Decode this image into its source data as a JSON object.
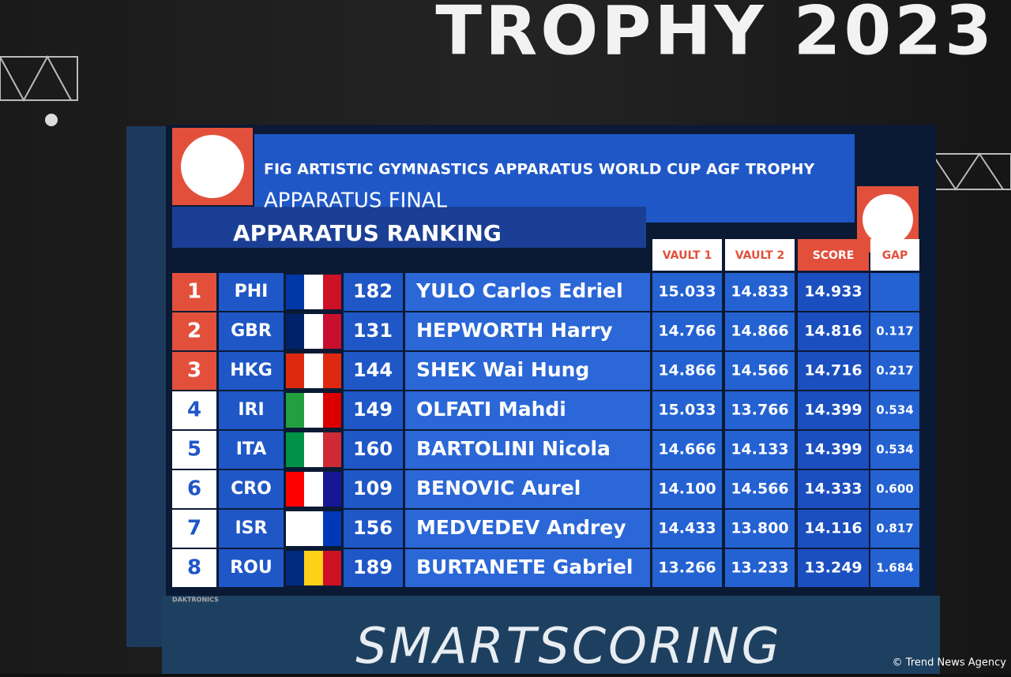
{
  "banner": {
    "text": "TROPHY 2023"
  },
  "board": {
    "title": "FIG ARTISTIC GYMNASTICS APPARATUS WORLD CUP AGF TROPHY",
    "subtitle": "APPARATUS FINAL",
    "heading": "APPARATUS RANKING",
    "columns": [
      "VAULT 1",
      "VAULT 2",
      "SCORE",
      "GAP"
    ],
    "rows": [
      [
        "1",
        "PHI",
        "182",
        "YULO Carlos Edriel",
        "15.033",
        "14.833",
        "14.933",
        null
      ],
      [
        "2",
        "GBR",
        "131",
        "HEPWORTH Harry",
        "14.766",
        "14.866",
        "14.816",
        "0.117"
      ],
      [
        "3",
        "HKG",
        "144",
        "SHEK Wai Hung",
        "14.866",
        "14.566",
        "14.716",
        "0.217"
      ],
      [
        "4",
        "IRI",
        "149",
        "OLFATI Mahdi",
        "15.033",
        "13.766",
        "14.399",
        "0.534"
      ],
      [
        "5",
        "ITA",
        "160",
        "BARTOLINI Nicola",
        "14.666",
        "14.133",
        "14.399",
        "0.534"
      ],
      [
        "6",
        "CRO",
        "109",
        "BENOVIC Aurel",
        "14.100",
        "14.566",
        "14.333",
        "0.600"
      ],
      [
        "7",
        "ISR",
        "156",
        "MEDVEDEV Andrey",
        "14.433",
        "13.800",
        "14.116",
        "0.817"
      ],
      [
        "8",
        "ROU",
        "189",
        "BURTANETE Gabriel",
        "13.266",
        "13.233",
        "13.249",
        "1.684"
      ]
    ],
    "maker": "DAKTRONICS"
  },
  "sponsor": "SMARTSCORING",
  "credit": "© Trend News Agency"
}
